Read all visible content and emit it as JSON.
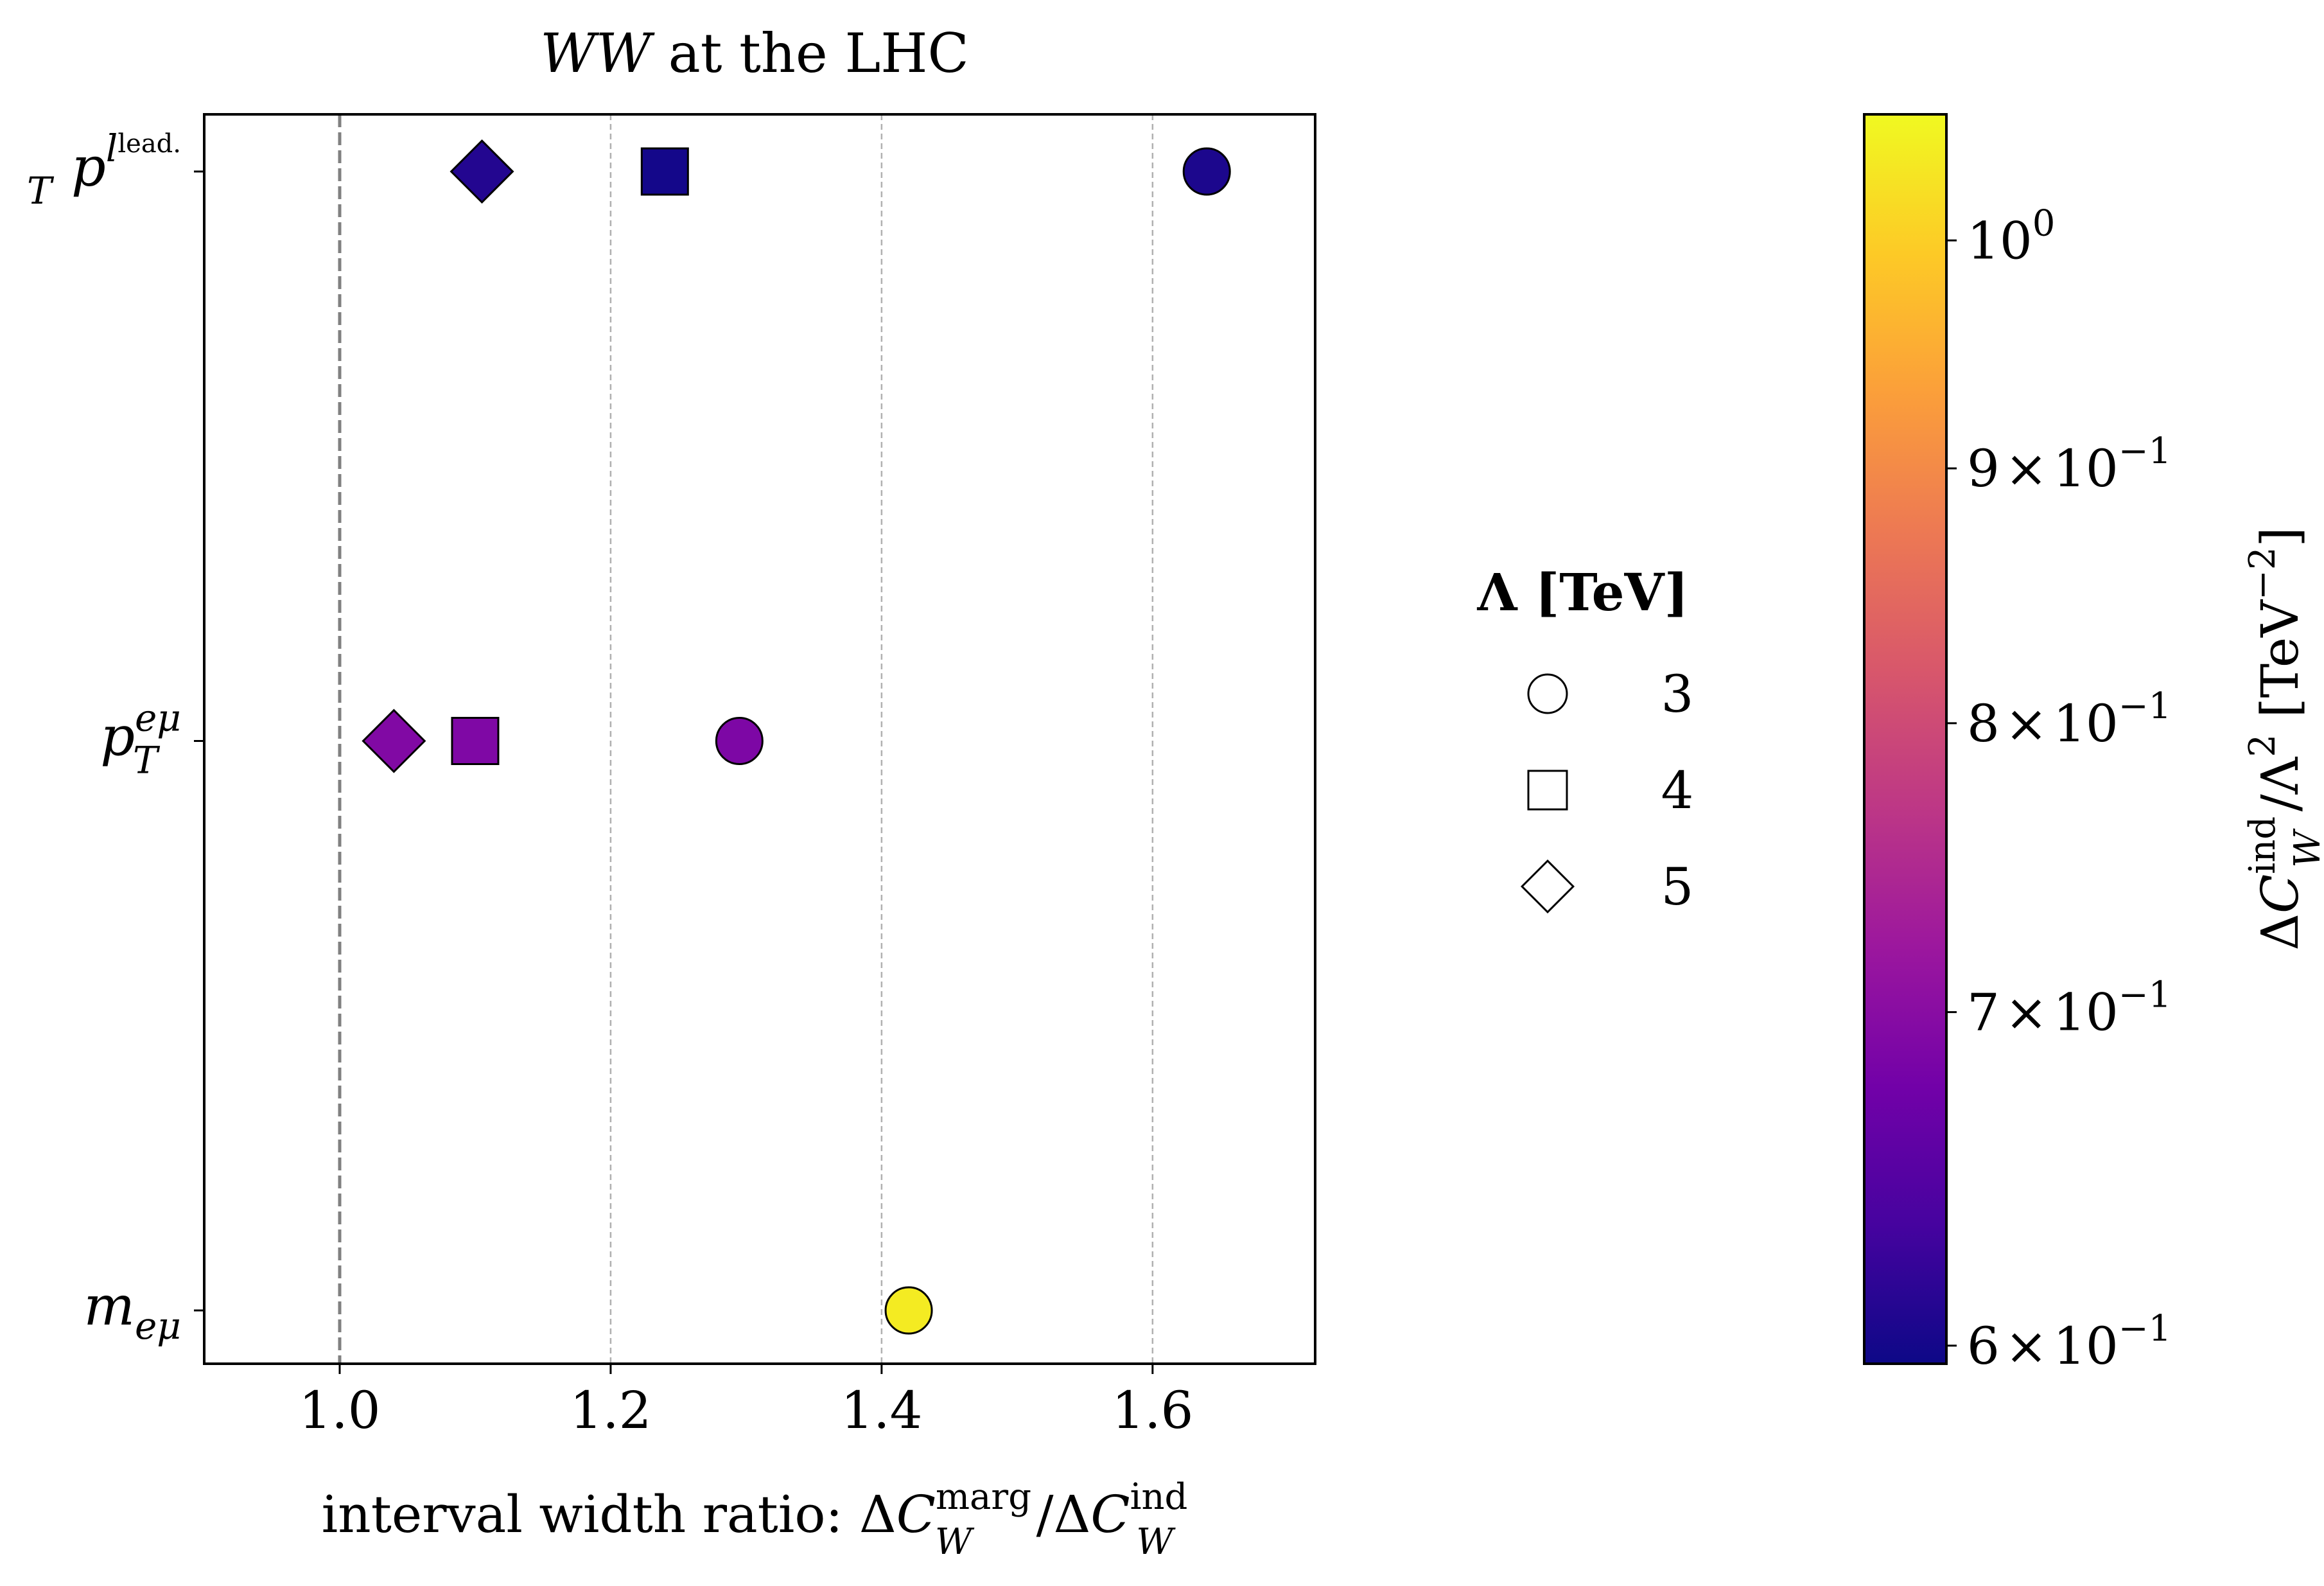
{
  "chart_data": {
    "type": "scatter",
    "title": "WW at the LHC",
    "title_parts": {
      "italic": "WW",
      "rest": " at the LHC"
    },
    "xlabel": "interval width ratio: ΔC_W^marg/ΔC_W^ind",
    "xlabel_parts": {
      "prefix": "interval width ratio: ",
      "delta1": "Δ",
      "c1": "C",
      "sup1": "marg",
      "sub1": "W",
      "slash": "/",
      "delta2": "Δ",
      "c2": "C",
      "sup2": "ind",
      "sub2": "W"
    },
    "xlim": [
      0.9,
      1.72
    ],
    "xticks": [
      1.0,
      1.2,
      1.4,
      1.6
    ],
    "xtick_labels": [
      "1.0",
      "1.2",
      "1.4",
      "1.6"
    ],
    "reference_line_x": 1.0,
    "grid": "vertical dashed",
    "categories": [
      "p_T^{l_lead.}",
      "p_T^{eμ}",
      "m_{eμ}"
    ],
    "category_labels": [
      {
        "main": "p",
        "sub": "T",
        "sup": "l",
        "sup2": "lead."
      },
      {
        "main": "p",
        "sub": "T",
        "sup": "eμ",
        "sup2": ""
      },
      {
        "main": "m",
        "sub": "eμ",
        "sup": "",
        "sup2": ""
      }
    ],
    "series": [
      {
        "name": "3",
        "marker": "circle",
        "points": [
          {
            "category": 0,
            "x": 1.64,
            "c": 0.605
          },
          {
            "category": 1,
            "x": 1.295,
            "c": 0.688
          },
          {
            "category": 2,
            "x": 1.42,
            "c": 1.04
          }
        ]
      },
      {
        "name": "4",
        "marker": "square",
        "points": [
          {
            "category": 0,
            "x": 1.24,
            "c": 0.6
          },
          {
            "category": 1,
            "x": 1.1,
            "c": 0.69
          }
        ]
      },
      {
        "name": "5",
        "marker": "diamond",
        "points": [
          {
            "category": 0,
            "x": 1.105,
            "c": 0.61
          },
          {
            "category": 1,
            "x": 1.04,
            "c": 0.692
          }
        ]
      }
    ],
    "legend": {
      "title": "Λ [TeV]",
      "title_parts": {
        "lambda": "Λ",
        "rest": " [TeV]"
      },
      "placement": "right of plot",
      "entries": [
        {
          "marker": "circle",
          "label": "3"
        },
        {
          "marker": "square",
          "label": "4"
        },
        {
          "marker": "diamond",
          "label": "5"
        }
      ]
    },
    "colorbar": {
      "colormap": "plasma",
      "scale": "log",
      "range": [
        0.595,
        1.06
      ],
      "ticks": [
        {
          "value": 0.6,
          "mant": "6",
          "exp": "−1"
        },
        {
          "value": 0.7,
          "mant": "7",
          "exp": "−1"
        },
        {
          "value": 0.8,
          "mant": "8",
          "exp": "−1"
        },
        {
          "value": 0.9,
          "mant": "9",
          "exp": "−1"
        },
        {
          "value": 1.0,
          "mant": "",
          "exp": "0"
        }
      ],
      "tick_times": "×",
      "tick_base": "10",
      "label": "ΔC_W^ind/Λ^2 [TeV^−2]",
      "label_parts": {
        "delta": "Δ",
        "c": "C",
        "sup1": "ind",
        "sub1": "W",
        "slash": "/",
        "lambda": "Λ",
        "sup2": "2",
        "unit": " [TeV",
        "unit_exp": "−2",
        "close": "]"
      }
    },
    "colors": {
      "axis": "#000000",
      "grid": "#b0b0b0",
      "refline": "#808080",
      "marker_edge": "#000000",
      "plasma_stops": [
        "#0d0887",
        "#46039f",
        "#7201a8",
        "#9c179e",
        "#bd3786",
        "#d8576b",
        "#ed7953",
        "#fb9f3a",
        "#fdca26",
        "#f0f921"
      ]
    }
  }
}
